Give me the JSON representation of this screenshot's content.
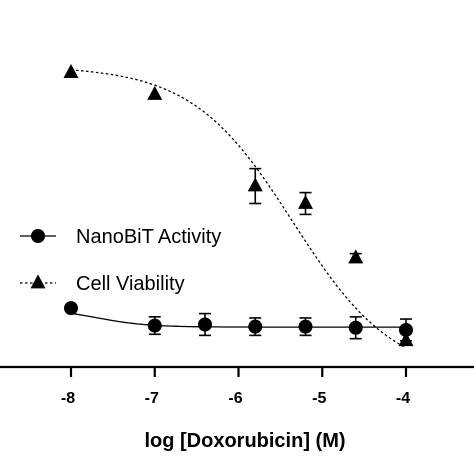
{
  "chart_data": {
    "type": "scatter",
    "title": "",
    "xlabel": "log [Doxorubicin] (M)",
    "ylabel": "",
    "xlim": [
      -8.05,
      -3.9
    ],
    "ylim": [
      -5,
      145
    ],
    "xticks": [
      -8,
      -7,
      -6,
      -5,
      -4
    ],
    "xtick_labels": [
      "-8",
      "-7",
      "-6",
      "-5",
      "-4"
    ],
    "y_axis_visible": false,
    "legend_position": "left-middle",
    "series": [
      {
        "name": "NanoBiT Activity",
        "marker": "circle",
        "line_style": "solid",
        "color": "#000000",
        "x": [
          -8,
          -7,
          -6.4,
          -5.8,
          -5.2,
          -4.6,
          -4
        ],
        "y": [
          22,
          14,
          14.5,
          13.5,
          13.5,
          13,
          12
        ],
        "err": [
          0,
          4,
          5,
          4,
          4,
          5,
          5
        ],
        "fit": {
          "top": 22,
          "bottom": 13.3,
          "log_ic50": -7.7,
          "hill": -1.4
        }
      },
      {
        "name": "Cell Viability",
        "marker": "triangle",
        "line_style": "dashed",
        "color": "#000000",
        "x": [
          -8,
          -7,
          -5.8,
          -5.2,
          -4.6,
          -4
        ],
        "y": [
          130,
          120,
          78,
          70,
          45,
          7
        ],
        "err": [
          0,
          0,
          8,
          5,
          2,
          0
        ],
        "fit": {
          "top": 133,
          "bottom": -10,
          "log_ic50": -5.35,
          "hill": -0.72
        }
      }
    ]
  }
}
